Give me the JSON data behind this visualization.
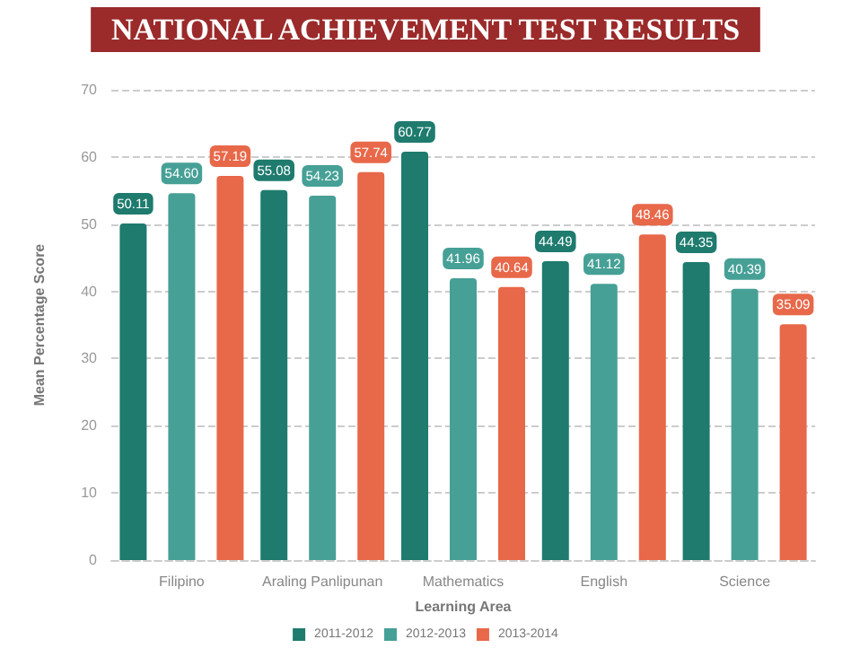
{
  "chart_data": {
    "type": "bar",
    "title": "NATIONAL ACHIEVEMENT TEST RESULTS",
    "xlabel": "Learning Area",
    "ylabel": "Mean Percentage Score",
    "categories": [
      "Filipino",
      "Araling Panlipunan",
      "Mathematics",
      "English",
      "Science"
    ],
    "series": [
      {
        "name": "2011-2012",
        "color": "#1e7b6e",
        "values": [
          50.11,
          55.08,
          60.77,
          44.49,
          44.35
        ],
        "value_labels": [
          "50.11",
          "55.08",
          "60.77",
          "44.49",
          "44.35"
        ]
      },
      {
        "name": "2012-2013",
        "color": "#46a096",
        "values": [
          54.6,
          54.23,
          41.96,
          41.12,
          40.39
        ],
        "value_labels": [
          "54.60",
          "54.23",
          "41.96",
          "41.12",
          "40.39"
        ]
      },
      {
        "name": "2013-2014",
        "color": "#e8684a",
        "values": [
          57.19,
          57.74,
          40.64,
          48.46,
          35.09
        ],
        "value_labels": [
          "57.19",
          "57.74",
          "40.64",
          "48.46",
          "35.09"
        ]
      }
    ],
    "ylim": [
      0,
      70
    ],
    "yticks": [
      0,
      10,
      20,
      30,
      40,
      50,
      60,
      70
    ],
    "grid": "y",
    "legend": "bottom"
  }
}
